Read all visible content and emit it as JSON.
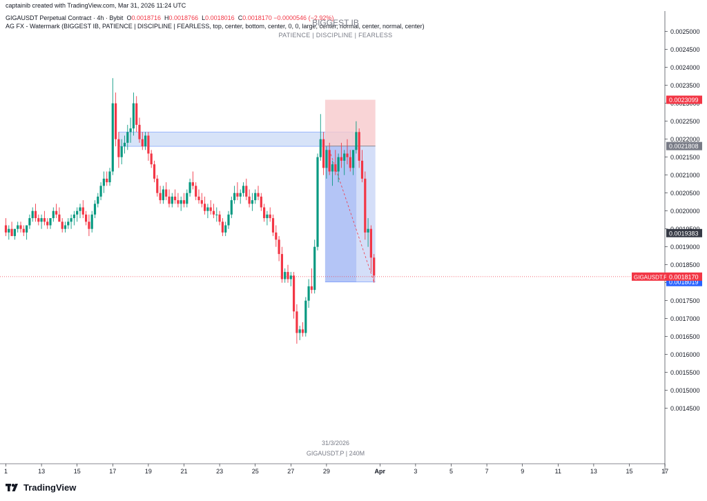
{
  "header": {
    "credit": "captainib created with TradingView.com, Mar 31, 2026 11:24 UTC",
    "symbol_line": "GIGAUSDT Perpetual Contract · 4h · Bybit",
    "ohlc": {
      "o_label": "O",
      "o": "0.0018716",
      "h_label": "H",
      "h": "0.0018766",
      "l_label": "L",
      "l": "0.0018016",
      "c_label": "C",
      "c": "0.0018170",
      "change": "−0.0000546 (−2.92%)"
    },
    "indicator_line": "AG FX - Watermark (BIGGEST IB, PATIENCE  |  DISCIPLINE  |  FEARLESS, top, center, bottom, center, 0, 0, large, center, normal, center, normal, center)"
  },
  "watermark": {
    "title": "BIGGEST IB",
    "subtitle": "PATIENCE  |  DISCIPLINE  |  FEARLESS",
    "date": "31/3/2026",
    "symbol_interval": "GIGAUSDT.P | 240M"
  },
  "logo": {
    "text": "TradingView"
  },
  "colors": {
    "up": "#089981",
    "down": "#f23645",
    "text": "#131722",
    "muted": "#787b86",
    "grid_line": "#131722",
    "stop_zone": "#f7c9cc",
    "target_zone": "#cdd8f7",
    "target_zone_dark": "#a9bcf5",
    "ib_zone": "#c9daf5"
  },
  "chart_data": {
    "type": "candlestick",
    "symbol": "GIGAUSDT.P",
    "interval": "4h",
    "y_axis": {
      "position": "right",
      "ylim": [
        0.00143,
        0.00258
      ],
      "ticks": [
        "0.0025000",
        "0.0024500",
        "0.0024000",
        "0.0023500",
        "0.0023000",
        "0.0022500",
        "0.0022000",
        "0.0021500",
        "0.0021000",
        "0.0020500",
        "0.0020000",
        "0.0019500",
        "0.0019000",
        "0.0018500",
        "0.0018000",
        "0.0017500",
        "0.0017000",
        "0.0016500",
        "0.0016000",
        "0.0015500",
        "0.0015000",
        "0.0014500"
      ]
    },
    "x_axis": {
      "ticks": [
        {
          "label": "1",
          "bar": 0
        },
        {
          "label": "13",
          "bar": 12
        },
        {
          "label": "15",
          "bar": 24
        },
        {
          "label": "17",
          "bar": 36
        },
        {
          "label": "19",
          "bar": 48
        },
        {
          "label": "21",
          "bar": 60
        },
        {
          "label": "23",
          "bar": 72
        },
        {
          "label": "25",
          "bar": 84
        },
        {
          "label": "27",
          "bar": 96
        },
        {
          "label": "29",
          "bar": 108
        },
        {
          "label": "Apr",
          "bar": 126,
          "bold": true
        },
        {
          "label": "3",
          "bar": 138
        },
        {
          "label": "5",
          "bar": 150
        },
        {
          "label": "7",
          "bar": 162
        },
        {
          "label": "9",
          "bar": 174
        },
        {
          "label": "11",
          "bar": 186
        },
        {
          "label": "13",
          "bar": 198
        },
        {
          "label": "15",
          "bar": 210
        },
        {
          "label": "17",
          "bar": 222
        }
      ]
    },
    "candles": [
      [
        0.00196,
        0.00198,
        0.00193,
        0.00194
      ],
      [
        0.00194,
        0.00196,
        0.00192,
        0.00195
      ],
      [
        0.00195,
        0.00197,
        0.00193,
        0.00193
      ],
      [
        0.00193,
        0.00195,
        0.00192,
        0.00195
      ],
      [
        0.00195,
        0.00197,
        0.00194,
        0.00196
      ],
      [
        0.00196,
        0.00197,
        0.00194,
        0.00195
      ],
      [
        0.00195,
        0.00196,
        0.00193,
        0.00194
      ],
      [
        0.00194,
        0.00196,
        0.00192,
        0.00196
      ],
      [
        0.00196,
        0.00199,
        0.00195,
        0.00198
      ],
      [
        0.00198,
        0.00201,
        0.00197,
        0.002
      ],
      [
        0.002,
        0.00202,
        0.00197,
        0.00198
      ],
      [
        0.00198,
        0.00199,
        0.00196,
        0.00197
      ],
      [
        0.00197,
        0.00199,
        0.00195,
        0.00198
      ],
      [
        0.00198,
        0.002,
        0.00196,
        0.00197
      ],
      [
        0.00197,
        0.00198,
        0.00195,
        0.00196
      ],
      [
        0.00196,
        0.00198,
        0.00195,
        0.00198
      ],
      [
        0.00198,
        0.00201,
        0.00197,
        0.002
      ],
      [
        0.002,
        0.00202,
        0.00198,
        0.00199
      ],
      [
        0.00199,
        0.00201,
        0.00197,
        0.00197
      ],
      [
        0.00197,
        0.00198,
        0.00194,
        0.00195
      ],
      [
        0.00195,
        0.00197,
        0.00194,
        0.00196
      ],
      [
        0.00196,
        0.00198,
        0.00195,
        0.00197
      ],
      [
        0.00197,
        0.00199,
        0.00195,
        0.00198
      ],
      [
        0.00198,
        0.002,
        0.00196,
        0.00199
      ],
      [
        0.00199,
        0.00201,
        0.00197,
        0.002
      ],
      [
        0.002,
        0.00202,
        0.00198,
        0.00201
      ],
      [
        0.00201,
        0.00203,
        0.00198,
        0.00199
      ],
      [
        0.00199,
        0.002,
        0.00196,
        0.00197
      ],
      [
        0.00197,
        0.00199,
        0.00193,
        0.00195
      ],
      [
        0.00195,
        0.002,
        0.00194,
        0.00199
      ],
      [
        0.00199,
        0.00203,
        0.00198,
        0.00202
      ],
      [
        0.00202,
        0.00205,
        0.00201,
        0.00204
      ],
      [
        0.00204,
        0.00208,
        0.00203,
        0.00207
      ],
      [
        0.00207,
        0.00211,
        0.00205,
        0.00209
      ],
      [
        0.00209,
        0.00211,
        0.00207,
        0.00208
      ],
      [
        0.00208,
        0.00212,
        0.00207,
        0.00211
      ],
      [
        0.00211,
        0.00237,
        0.0021,
        0.0023
      ],
      [
        0.0023,
        0.00233,
        0.00218,
        0.0022
      ],
      [
        0.0022,
        0.00222,
        0.00212,
        0.00215
      ],
      [
        0.00215,
        0.0022,
        0.00213,
        0.00218
      ],
      [
        0.00218,
        0.00221,
        0.00216,
        0.00219
      ],
      [
        0.00219,
        0.00224,
        0.00217,
        0.00222
      ],
      [
        0.00222,
        0.00226,
        0.00219,
        0.00223
      ],
      [
        0.00223,
        0.00233,
        0.00221,
        0.0023
      ],
      [
        0.0023,
        0.00232,
        0.00222,
        0.00224
      ],
      [
        0.00224,
        0.00226,
        0.00219,
        0.0022
      ],
      [
        0.0022,
        0.00222,
        0.00217,
        0.00218
      ],
      [
        0.00218,
        0.00222,
        0.00217,
        0.00221
      ],
      [
        0.00221,
        0.00222,
        0.00214,
        0.00216
      ],
      [
        0.00216,
        0.00217,
        0.00212,
        0.00213
      ],
      [
        0.00213,
        0.00214,
        0.00208,
        0.00209
      ],
      [
        0.00209,
        0.0021,
        0.00204,
        0.00205
      ],
      [
        0.00205,
        0.00207,
        0.00202,
        0.00203
      ],
      [
        0.00203,
        0.00207,
        0.00202,
        0.00206
      ],
      [
        0.00206,
        0.00208,
        0.00203,
        0.00204
      ],
      [
        0.00204,
        0.00206,
        0.00201,
        0.00202
      ],
      [
        0.00202,
        0.00205,
        0.00201,
        0.00204
      ],
      [
        0.00204,
        0.00206,
        0.00202,
        0.00203
      ],
      [
        0.00203,
        0.00205,
        0.00201,
        0.00202
      ],
      [
        0.00202,
        0.00204,
        0.002,
        0.00203
      ],
      [
        0.00203,
        0.00205,
        0.00201,
        0.00202
      ],
      [
        0.00202,
        0.00206,
        0.00201,
        0.00205
      ],
      [
        0.00205,
        0.00209,
        0.00204,
        0.00208
      ],
      [
        0.00208,
        0.00211,
        0.00206,
        0.00207
      ],
      [
        0.00207,
        0.00208,
        0.00203,
        0.00204
      ],
      [
        0.00204,
        0.00206,
        0.00202,
        0.00203
      ],
      [
        0.00203,
        0.00205,
        0.00201,
        0.00202
      ],
      [
        0.00202,
        0.00204,
        0.00199,
        0.002
      ],
      [
        0.002,
        0.00202,
        0.00198,
        0.00201
      ],
      [
        0.00201,
        0.00203,
        0.00199,
        0.002
      ],
      [
        0.002,
        0.00202,
        0.00198,
        0.00199
      ],
      [
        0.00199,
        0.00201,
        0.00197,
        0.00199
      ],
      [
        0.00199,
        0.002,
        0.00196,
        0.00197
      ],
      [
        0.00197,
        0.00198,
        0.00193,
        0.00194
      ],
      [
        0.00194,
        0.00197,
        0.00193,
        0.00196
      ],
      [
        0.00196,
        0.002,
        0.00195,
        0.00199
      ],
      [
        0.00199,
        0.00204,
        0.00198,
        0.00203
      ],
      [
        0.00203,
        0.00207,
        0.00202,
        0.00205
      ],
      [
        0.00205,
        0.00208,
        0.00203,
        0.00204
      ],
      [
        0.00204,
        0.00206,
        0.00202,
        0.00205
      ],
      [
        0.00205,
        0.00208,
        0.00204,
        0.00207
      ],
      [
        0.00207,
        0.00209,
        0.00203,
        0.00204
      ],
      [
        0.00204,
        0.00206,
        0.00201,
        0.00202
      ],
      [
        0.00202,
        0.00205,
        0.002,
        0.00203
      ],
      [
        0.00203,
        0.00206,
        0.00202,
        0.00205
      ],
      [
        0.00205,
        0.00207,
        0.00203,
        0.00204
      ],
      [
        0.00204,
        0.00205,
        0.002,
        0.00201
      ],
      [
        0.00201,
        0.00202,
        0.00197,
        0.00198
      ],
      [
        0.00198,
        0.002,
        0.00196,
        0.00199
      ],
      [
        0.00199,
        0.00201,
        0.00197,
        0.00198
      ],
      [
        0.00198,
        0.00199,
        0.00193,
        0.00194
      ],
      [
        0.00194,
        0.00196,
        0.0019,
        0.00192
      ],
      [
        0.00192,
        0.00193,
        0.00186,
        0.00188
      ],
      [
        0.00188,
        0.0019,
        0.0018,
        0.00181
      ],
      [
        0.00181,
        0.00184,
        0.0018,
        0.00183
      ],
      [
        0.00183,
        0.00185,
        0.0018,
        0.00181
      ],
      [
        0.00181,
        0.00183,
        0.00179,
        0.00182
      ],
      [
        0.00182,
        0.00183,
        0.0017,
        0.00172
      ],
      [
        0.00172,
        0.00174,
        0.00163,
        0.00166
      ],
      [
        0.00166,
        0.00168,
        0.00164,
        0.00167
      ],
      [
        0.00167,
        0.00169,
        0.00165,
        0.00166
      ],
      [
        0.00166,
        0.00176,
        0.00165,
        0.00175
      ],
      [
        0.00175,
        0.00181,
        0.00173,
        0.00179
      ],
      [
        0.00179,
        0.00184,
        0.00177,
        0.00178
      ],
      [
        0.00178,
        0.00192,
        0.00177,
        0.0019
      ],
      [
        0.0019,
        0.00216,
        0.00189,
        0.00215
      ],
      [
        0.00215,
        0.00227,
        0.00214,
        0.0022
      ],
      [
        0.0022,
        0.00222,
        0.0021,
        0.00212
      ],
      [
        0.00212,
        0.00218,
        0.00209,
        0.00217
      ],
      [
        0.00217,
        0.00219,
        0.0021,
        0.00211
      ],
      [
        0.00211,
        0.00214,
        0.00207,
        0.00213
      ],
      [
        0.00213,
        0.00217,
        0.0021,
        0.00211
      ],
      [
        0.00211,
        0.00216,
        0.00208,
        0.00215
      ],
      [
        0.00215,
        0.00219,
        0.00212,
        0.00214
      ],
      [
        0.00214,
        0.00217,
        0.0021,
        0.00216
      ],
      [
        0.00216,
        0.0022,
        0.00213,
        0.00215
      ],
      [
        0.00215,
        0.00217,
        0.00211,
        0.00212
      ],
      [
        0.00212,
        0.00216,
        0.0021,
        0.00217
      ],
      [
        0.00217,
        0.00225,
        0.00216,
        0.00222
      ],
      [
        0.00222,
        0.00223,
        0.00212,
        0.00214
      ],
      [
        0.00214,
        0.00217,
        0.00208,
        0.00209
      ],
      [
        0.00209,
        0.00211,
        0.00192,
        0.00194
      ],
      [
        0.00194,
        0.00198,
        0.0019,
        0.00195
      ],
      [
        0.00195,
        0.00196,
        0.00183,
        0.00187
      ],
      [
        0.00187,
        0.00188,
        0.0018,
        0.00182
      ]
    ],
    "last_price": {
      "value": 0.001817,
      "label": "0.0018170",
      "symbol_tag": "GIGAUSDT.P"
    },
    "price_tags": [
      {
        "value": 0.0023099,
        "label": "0.0023099",
        "color": "#f23645"
      },
      {
        "value": 0.0021808,
        "label": "0.0021808",
        "color": "#787b86"
      },
      {
        "value": 0.0019383,
        "label": "0.0019383",
        "color": "#363a45"
      },
      {
        "value": 0.0018019,
        "label": "0.0018019",
        "color": "#2962ff"
      }
    ],
    "ib_zone": {
      "from_bar": 38,
      "to_bar": 117,
      "top": 0.00222,
      "bottom": 0.00218
    },
    "position_tool": {
      "side": "short",
      "from_bar": 108,
      "to_bar": 124,
      "entry": 0.0021808,
      "stop": 0.0023099,
      "target": 0.0018019
    }
  }
}
